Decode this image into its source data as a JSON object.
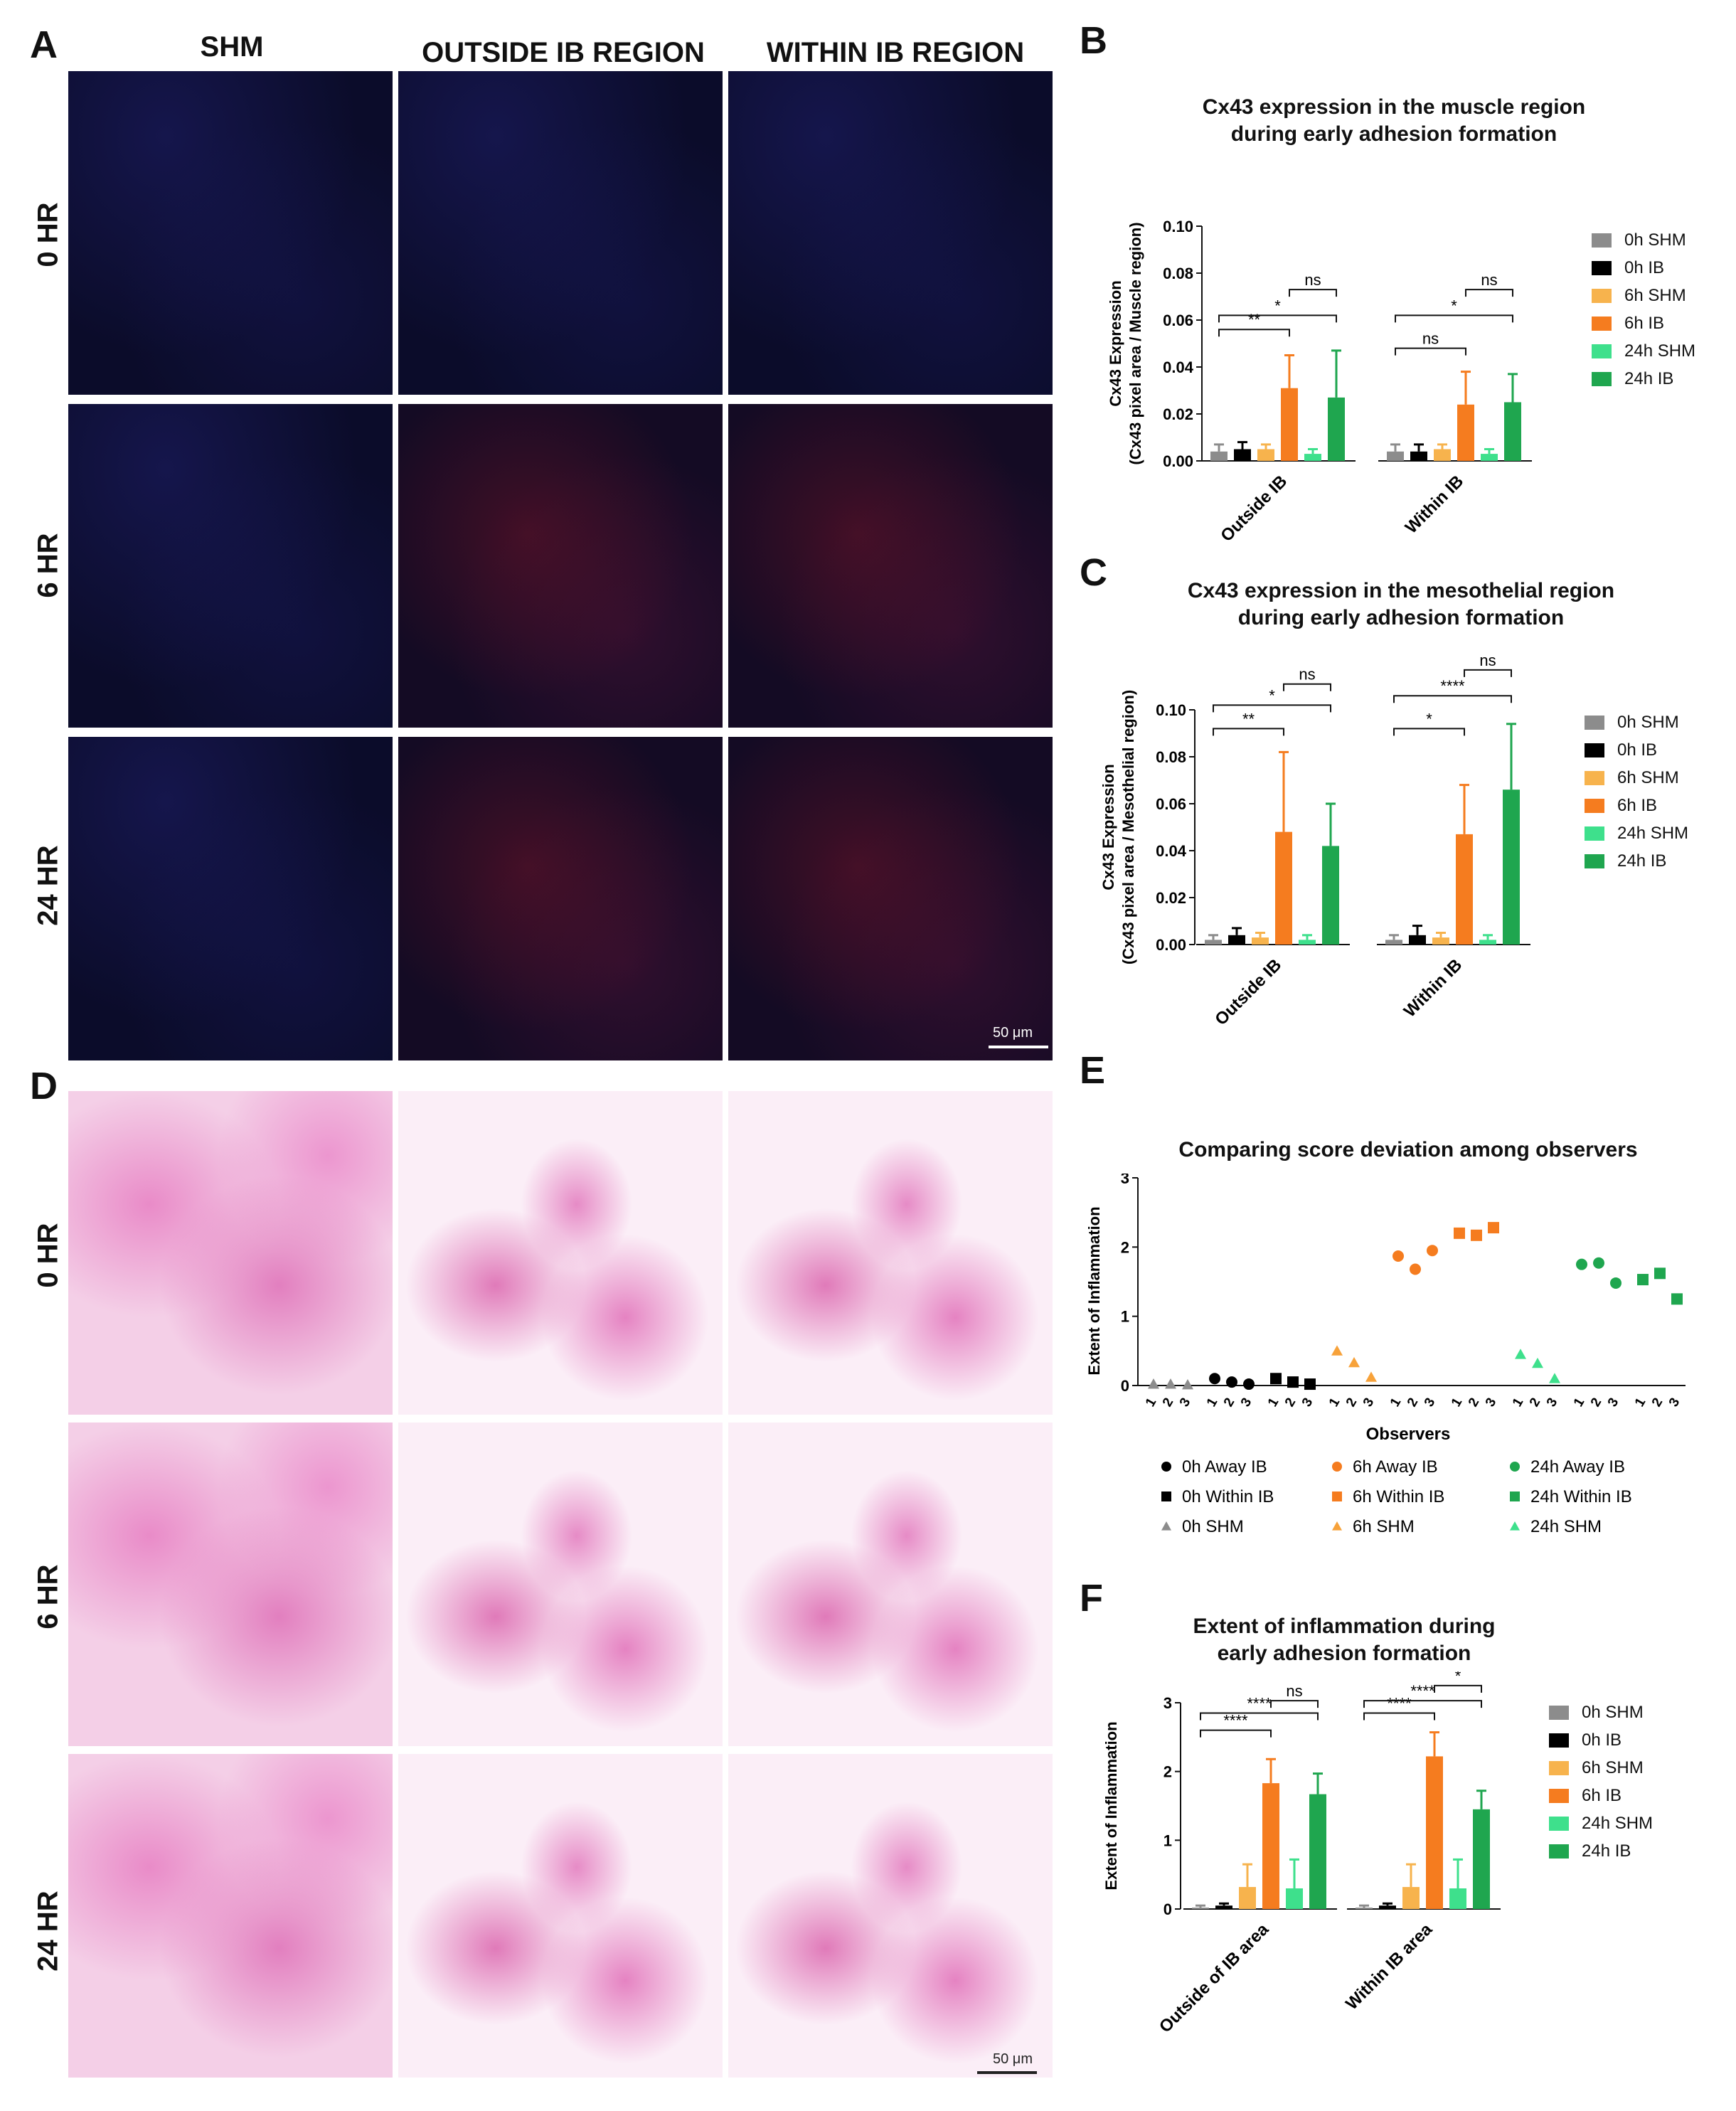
{
  "panel_letters": {
    "A": "A",
    "B": "B",
    "C": "C",
    "D": "D",
    "E": "E",
    "F": "F"
  },
  "panel_a": {
    "column_headers": [
      "SHM",
      "OUTSIDE IB REGION",
      "WITHIN IB REGION"
    ],
    "row_headers": [
      "0 HR",
      "6 HR",
      "24 HR"
    ],
    "scale_bar": "50 μm"
  },
  "panel_d": {
    "row_headers": [
      "0 HR",
      "6 HR",
      "24 HR"
    ],
    "scale_bar": "50 μm"
  },
  "colors": {
    "0h_shm": "#8c8c8c",
    "0h_ib": "#000000",
    "6h_shm": "#f7b34d",
    "6h_ib": "#f57c1f",
    "24h_shm": "#3ee08c",
    "24h_ib": "#1fa64f"
  },
  "legend_bar": [
    "0h SHM",
    "0h IB",
    "6h SHM",
    "6h IB",
    "24h SHM",
    "24h IB"
  ],
  "chart_data": [
    {
      "id": "B",
      "type": "bar",
      "title_lines": [
        "Cx43 expression in the muscle region",
        "during early adhesion formation"
      ],
      "ylabel_lines": [
        "Cx43 Expression",
        "(Cx43 pixel area / Muscle region)"
      ],
      "ylim": [
        0,
        0.1
      ],
      "yticks": [
        "0.00",
        "0.02",
        "0.04",
        "0.06",
        "0.08",
        "0.10"
      ],
      "tick_values": [
        0,
        0.02,
        0.04,
        0.06,
        0.08,
        0.1
      ],
      "categories": [
        "Outside IB",
        "Within IB"
      ],
      "series": [
        {
          "name": "0h SHM",
          "values": [
            0.004,
            0.004
          ],
          "err": [
            0.003,
            0.003
          ]
        },
        {
          "name": "0h IB",
          "values": [
            0.005,
            0.004
          ],
          "err": [
            0.003,
            0.003
          ]
        },
        {
          "name": "6h SHM",
          "values": [
            0.005,
            0.005
          ],
          "err": [
            0.002,
            0.002
          ]
        },
        {
          "name": "6h IB",
          "values": [
            0.031,
            0.024
          ],
          "err": [
            0.014,
            0.014
          ]
        },
        {
          "name": "24h SHM",
          "values": [
            0.003,
            0.003
          ],
          "err": [
            0.002,
            0.002
          ]
        },
        {
          "name": "24h IB",
          "values": [
            0.027,
            0.025
          ],
          "err": [
            0.02,
            0.012
          ]
        }
      ],
      "significance": [
        {
          "group": 0,
          "from": 0,
          "to": 3,
          "label": "**",
          "level": 0.056
        },
        {
          "group": 0,
          "from": 0,
          "to": 5,
          "label": "*",
          "level": 0.062
        },
        {
          "group": 0,
          "from": 3,
          "to": 5,
          "label": "ns",
          "level": 0.073
        },
        {
          "group": 1,
          "from": 0,
          "to": 3,
          "label": "ns",
          "level": 0.048
        },
        {
          "group": 1,
          "from": 0,
          "to": 5,
          "label": "*",
          "level": 0.062
        },
        {
          "group": 1,
          "from": 3,
          "to": 5,
          "label": "ns",
          "level": 0.073
        }
      ]
    },
    {
      "id": "C",
      "type": "bar",
      "title_lines": [
        "Cx43 expression in the mesothelial region",
        "during early adhesion formation"
      ],
      "ylabel_lines": [
        "Cx43 Expression",
        "(Cx43 pixel area / Mesothelial region)"
      ],
      "ylim": [
        0,
        0.1
      ],
      "yticks": [
        "0.00",
        "0.02",
        "0.04",
        "0.06",
        "0.08",
        "0.10"
      ],
      "tick_values": [
        0,
        0.02,
        0.04,
        0.06,
        0.08,
        0.1
      ],
      "categories": [
        "Outside IB",
        "Within IB"
      ],
      "series": [
        {
          "name": "0h SHM",
          "values": [
            0.002,
            0.002
          ],
          "err": [
            0.002,
            0.002
          ]
        },
        {
          "name": "0h IB",
          "values": [
            0.004,
            0.004
          ],
          "err": [
            0.003,
            0.004
          ]
        },
        {
          "name": "6h SHM",
          "values": [
            0.003,
            0.003
          ],
          "err": [
            0.002,
            0.002
          ]
        },
        {
          "name": "6h IB",
          "values": [
            0.048,
            0.047
          ],
          "err": [
            0.034,
            0.021
          ]
        },
        {
          "name": "24h SHM",
          "values": [
            0.002,
            0.002
          ],
          "err": [
            0.002,
            0.002
          ]
        },
        {
          "name": "24h IB",
          "values": [
            0.042,
            0.066
          ],
          "err": [
            0.018,
            0.028
          ]
        }
      ],
      "significance": [
        {
          "group": 0,
          "from": 0,
          "to": 3,
          "label": "**",
          "level": 0.092
        },
        {
          "group": 0,
          "from": 0,
          "to": 5,
          "label": "*",
          "level": 0.102
        },
        {
          "group": 0,
          "from": 3,
          "to": 5,
          "label": "ns",
          "level": 0.111
        },
        {
          "group": 1,
          "from": 0,
          "to": 3,
          "label": "*",
          "level": 0.092
        },
        {
          "group": 1,
          "from": 0,
          "to": 5,
          "label": "****",
          "level": 0.106
        },
        {
          "group": 1,
          "from": 3,
          "to": 5,
          "label": "ns",
          "level": 0.117
        }
      ]
    },
    {
      "id": "E",
      "type": "scatter",
      "title": "Comparing score deviation among observers",
      "ylabel": "Extent of Inflammation",
      "xlabel": "Observers",
      "ylim": [
        0,
        3
      ],
      "yticks": [
        "0",
        "1",
        "2",
        "3"
      ],
      "tick_values": [
        0,
        1,
        2,
        3
      ],
      "x_tick_labels": [
        "1",
        "2",
        "3"
      ],
      "groups": [
        {
          "name": "0h SHM",
          "marker": "triangle",
          "color": "#8c8c8c",
          "values": [
            0.02,
            0.02,
            0.01
          ]
        },
        {
          "name": "0h Away IB",
          "marker": "circle",
          "color": "#000000",
          "values": [
            0.1,
            0.05,
            0.02
          ]
        },
        {
          "name": "0h Within IB",
          "marker": "square",
          "color": "#000000",
          "values": [
            0.1,
            0.05,
            0.02
          ]
        },
        {
          "name": "6h SHM",
          "marker": "triangle",
          "color": "#f7a23a",
          "values": [
            0.5,
            0.33,
            0.12
          ]
        },
        {
          "name": "6h Away IB",
          "marker": "circle",
          "color": "#f57c1f",
          "values": [
            1.87,
            1.68,
            1.95
          ]
        },
        {
          "name": "6h Within IB",
          "marker": "square",
          "color": "#f57c1f",
          "values": [
            2.2,
            2.17,
            2.28
          ]
        },
        {
          "name": "24h SHM",
          "marker": "triangle",
          "color": "#3ee08c",
          "values": [
            0.45,
            0.32,
            0.1
          ]
        },
        {
          "name": "24h Away IB",
          "marker": "circle",
          "color": "#1fa64f",
          "values": [
            1.75,
            1.77,
            1.48
          ]
        },
        {
          "name": "24h Within IB",
          "marker": "square",
          "color": "#1fa64f",
          "values": [
            1.53,
            1.62,
            1.25
          ]
        }
      ],
      "legend": [
        {
          "label": "0h Away IB",
          "marker": "circle",
          "color": "#000000"
        },
        {
          "label": "0h Within IB",
          "marker": "square",
          "color": "#000000"
        },
        {
          "label": "0h SHM",
          "marker": "triangle",
          "color": "#8c8c8c"
        },
        {
          "label": "6h Away IB",
          "marker": "circle",
          "color": "#f57c1f"
        },
        {
          "label": "6h Within IB",
          "marker": "square",
          "color": "#f57c1f"
        },
        {
          "label": "6h SHM",
          "marker": "triangle",
          "color": "#f7a23a"
        },
        {
          "label": "24h Away IB",
          "marker": "circle",
          "color": "#1fa64f"
        },
        {
          "label": "24h Within IB",
          "marker": "square",
          "color": "#1fa64f"
        },
        {
          "label": "24h SHM",
          "marker": "triangle",
          "color": "#3ee08c"
        }
      ]
    },
    {
      "id": "F",
      "type": "bar",
      "title_lines": [
        "Extent of inflammation during",
        "early adhesion formation"
      ],
      "ylabel_lines": [
        "Extent of Inflammation"
      ],
      "ylim": [
        0,
        3
      ],
      "yticks": [
        "0",
        "1",
        "2",
        "3"
      ],
      "tick_values": [
        0,
        1,
        2,
        3
      ],
      "categories": [
        "Outside of IB area",
        "Within IB area"
      ],
      "series": [
        {
          "name": "0h SHM",
          "values": [
            0.02,
            0.02
          ],
          "err": [
            0.03,
            0.03
          ]
        },
        {
          "name": "0h IB",
          "values": [
            0.05,
            0.05
          ],
          "err": [
            0.03,
            0.03
          ]
        },
        {
          "name": "6h SHM",
          "values": [
            0.32,
            0.32
          ],
          "err": [
            0.33,
            0.33
          ]
        },
        {
          "name": "6h IB",
          "values": [
            1.83,
            2.22
          ],
          "err": [
            0.35,
            0.35
          ]
        },
        {
          "name": "24h SHM",
          "values": [
            0.3,
            0.3
          ],
          "err": [
            0.42,
            0.42
          ]
        },
        {
          "name": "24h IB",
          "values": [
            1.67,
            1.45
          ],
          "err": [
            0.3,
            0.27
          ]
        }
      ],
      "significance": [
        {
          "group": 0,
          "from": 0,
          "to": 3,
          "label": "****",
          "level": 2.6
        },
        {
          "group": 0,
          "from": 0,
          "to": 5,
          "label": "****",
          "level": 2.85
        },
        {
          "group": 0,
          "from": 3,
          "to": 5,
          "label": "ns",
          "level": 3.03
        },
        {
          "group": 1,
          "from": 0,
          "to": 3,
          "label": "****",
          "level": 2.85
        },
        {
          "group": 1,
          "from": 0,
          "to": 5,
          "label": "****",
          "level": 3.03
        },
        {
          "group": 1,
          "from": 3,
          "to": 5,
          "label": "*",
          "level": 3.25
        }
      ]
    }
  ]
}
